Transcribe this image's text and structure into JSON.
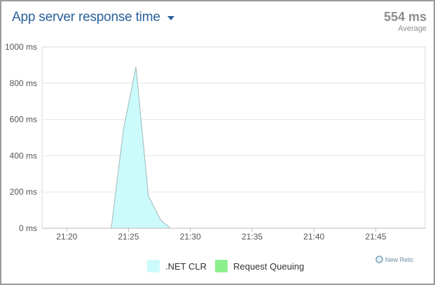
{
  "header": {
    "title": "App server response time",
    "average_value": "554 ms",
    "average_label": "Average"
  },
  "chart_data": {
    "type": "area",
    "title": "App server response time",
    "y_unit": "ms",
    "ylim": [
      0,
      1000
    ],
    "y_ticks": [
      0,
      200,
      400,
      600,
      800,
      1000
    ],
    "y_tick_labels": [
      "0 ms",
      "200 ms",
      "400 ms",
      "600 ms",
      "800 ms",
      "1000 ms"
    ],
    "xlim": [
      "21:18",
      "21:49"
    ],
    "x_tick_labels": [
      "21:20",
      "21:25",
      "21:30",
      "21:35",
      "21:40",
      "21:45"
    ],
    "grid": true,
    "legend_position": "bottom",
    "series": [
      {
        "name": ".NET CLR",
        "color": "#ccfbfb",
        "x": [
          "21:23:36",
          "21:24:36",
          "21:25:36",
          "21:26:36",
          "21:27:36",
          "21:28:24"
        ],
        "values": [
          0,
          550,
          890,
          180,
          45,
          0
        ]
      },
      {
        "name": "Request Queuing",
        "color": "#8cf08c",
        "x": [
          "21:23:36",
          "21:28:24"
        ],
        "values": [
          0,
          0
        ]
      }
    ]
  },
  "legend": {
    "items": [
      {
        "label": ".NET CLR",
        "color": "#ccfbfb"
      },
      {
        "label": "Request Queuing",
        "color": "#8cf08c"
      }
    ]
  },
  "brand": {
    "label": "New Relic"
  }
}
